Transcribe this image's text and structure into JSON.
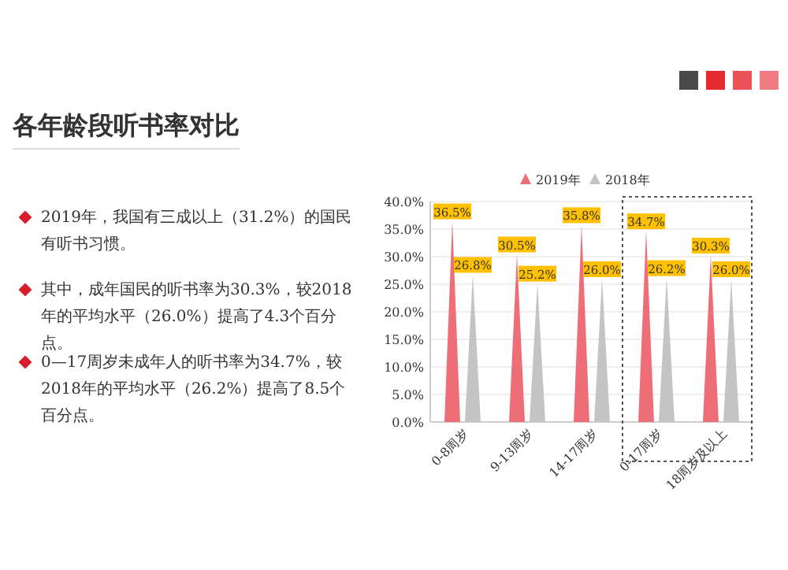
{
  "chart_data": {
    "type": "bar",
    "title": "各年龄段听书率对比",
    "annotations": [
      "2019年，我国有三成以上（31.2%）的国民有听书习惯。",
      "其中，成年国民的听书率为30.3%，较2018年的平均水平（26.0%）提高了4.3个百分点。",
      "0—17周岁未成年人的听书率为34.7%，较2018年的平均水平（26.2%）提高了8.5个百分点。"
    ],
    "categories": [
      "0-8周岁",
      "9-13周岁",
      "14-17周岁",
      "0-17周岁",
      "18周岁及以上"
    ],
    "series": [
      {
        "name": "2019年",
        "color": "#ee6e78",
        "values": [
          36.5,
          30.5,
          35.8,
          34.7,
          30.3
        ],
        "value_labels": [
          "36.5%",
          "30.5%",
          "35.8%",
          "34.7%",
          "30.3%"
        ]
      },
      {
        "name": "2018年",
        "color": "#c4c4c4",
        "values": [
          26.8,
          25.2,
          26.0,
          26.2,
          26.0
        ],
        "value_labels": [
          "26.8%",
          "25.2%",
          "26.0%",
          "26.2%",
          "26.0%"
        ]
      }
    ],
    "ylim": [
      0,
      40
    ],
    "yticks": [
      {
        "value": 0,
        "label": "0.0%"
      },
      {
        "value": 5,
        "label": "5.0%"
      },
      {
        "value": 10,
        "label": "10.0%"
      },
      {
        "value": 15,
        "label": "15.0%"
      },
      {
        "value": 20,
        "label": "20.0%"
      },
      {
        "value": 25,
        "label": "25.0%"
      },
      {
        "value": 30,
        "label": "30.0%"
      },
      {
        "value": 35,
        "label": "35.0%"
      },
      {
        "value": 40,
        "label": "40.0%"
      }
    ],
    "grid": "y",
    "legend": "top"
  }
}
